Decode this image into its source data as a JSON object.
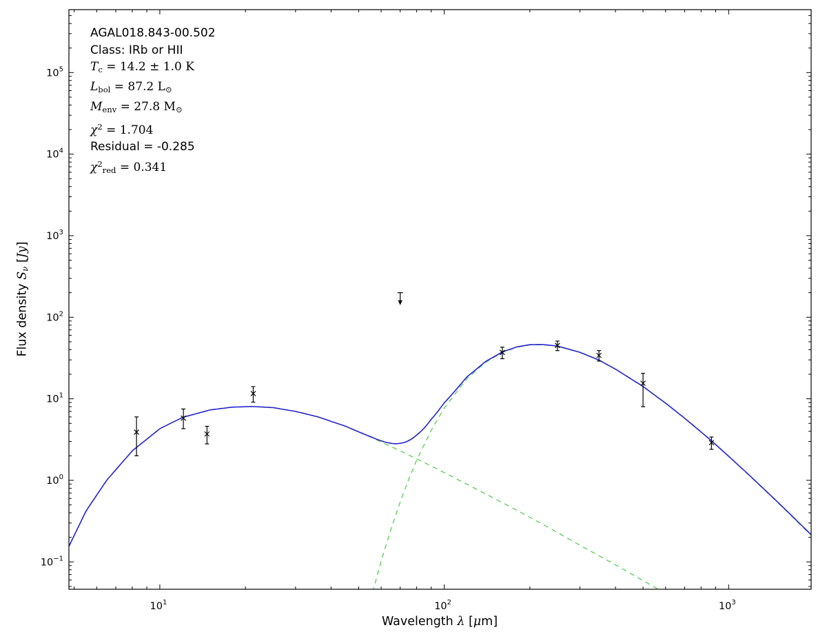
{
  "colors": {
    "model_total": "#2323cf",
    "model_components": "#55cc55",
    "data_points": "#000000",
    "frame": "#000000",
    "background": "#ffffff"
  },
  "annotation": {
    "lines": [
      {
        "segments": [
          {
            "t": "AGAL018.843-00.502",
            "s": "sans"
          }
        ]
      },
      {
        "segments": [
          {
            "t": "Class: IRb or HII",
            "s": "sans"
          }
        ]
      },
      {
        "segments": [
          {
            "t": "T",
            "s": "it"
          },
          {
            "t": "c",
            "s": "sub"
          },
          {
            "t": " = 14.2 ± 1.0 K",
            "s": "rm"
          }
        ]
      },
      {
        "segments": [
          {
            "t": "L",
            "s": "it"
          },
          {
            "t": "bol",
            "s": "sub"
          },
          {
            "t": " = 87.2 L",
            "s": "rm"
          },
          {
            "t": "⊙",
            "s": "sub"
          }
        ]
      },
      {
        "segments": [
          {
            "t": "M",
            "s": "it"
          },
          {
            "t": "env",
            "s": "sub"
          },
          {
            "t": " = 27.8 M",
            "s": "rm"
          },
          {
            "t": "⊙",
            "s": "sub"
          }
        ]
      },
      {
        "segments": [
          {
            "t": "χ",
            "s": "it"
          },
          {
            "t": "2",
            "s": "sup"
          },
          {
            "t": " = 1.704",
            "s": "rm"
          }
        ]
      },
      {
        "segments": [
          {
            "t": "Residual = -0.285",
            "s": "sans"
          }
        ]
      },
      {
        "segments": [
          {
            "t": "χ",
            "s": "it"
          },
          {
            "t": "2",
            "s": "sup"
          },
          {
            "t": "red",
            "s": "sub"
          },
          {
            "t": " = 0.341",
            "s": "rm"
          }
        ]
      }
    ]
  },
  "axes": {
    "xlabel_segments": [
      {
        "t": "Wavelength ",
        "s": "sans"
      },
      {
        "t": "λ",
        "s": "it"
      },
      {
        "t": " [",
        "s": "sans"
      },
      {
        "t": "μ",
        "s": "it"
      },
      {
        "t": "m]",
        "s": "sans"
      }
    ],
    "ylabel_segments": [
      {
        "t": "Flux density ",
        "s": "sans"
      },
      {
        "t": "S",
        "s": "it"
      },
      {
        "t": "ν",
        "s": "subit"
      },
      {
        "t": " [",
        "s": "sans"
      },
      {
        "t": "Jy",
        "s": "it"
      },
      {
        "t": "]",
        "s": "sans"
      }
    ]
  },
  "chart_data": {
    "type": "line",
    "title": "",
    "xlabel": "Wavelength λ [μm]",
    "ylabel": "Flux density Sν [Jy]",
    "x_scale": "log",
    "y_scale": "log",
    "xlim": [
      4.79,
      1950
    ],
    "ylim": [
      0.0462,
      591000
    ],
    "grid": false,
    "legend": "none",
    "x_ticks": [
      {
        "value": 10,
        "label_exp": "1"
      },
      {
        "value": 100,
        "label_exp": "2"
      },
      {
        "value": 1000,
        "label_exp": "3"
      }
    ],
    "y_ticks": [
      {
        "value": 0.1,
        "label_exp": "−1"
      },
      {
        "value": 1,
        "label_exp": "0"
      },
      {
        "value": 10,
        "label_exp": "1"
      },
      {
        "value": 100,
        "label_exp": "2"
      },
      {
        "value": 1000,
        "label_exp": "3"
      },
      {
        "value": 10000,
        "label_exp": "4"
      },
      {
        "value": 100000,
        "label_exp": "5"
      }
    ],
    "series": [
      {
        "name": "warm-component",
        "role": "component",
        "style": "dashed",
        "x": [
          4.79,
          5.5,
          6.5,
          8,
          10,
          12,
          15,
          18,
          21,
          25,
          30,
          36,
          45,
          55,
          70,
          90,
          110,
          140,
          180,
          230,
          300,
          400,
          500,
          600,
          700
        ],
        "y": [
          0.155,
          0.42,
          1.0,
          2.3,
          4.3,
          5.9,
          7.3,
          7.9,
          8.05,
          7.8,
          7.0,
          6.0,
          4.6,
          3.4,
          2.3,
          1.5,
          1.05,
          0.68,
          0.43,
          0.27,
          0.16,
          0.092,
          0.059,
          0.041,
          0.03
        ]
      },
      {
        "name": "cold-component",
        "role": "component",
        "style": "dashed",
        "x": [
          55,
          60,
          65,
          70,
          75,
          80,
          90,
          100,
          120,
          140,
          160,
          180,
          200,
          220,
          250,
          300,
          350,
          400,
          500,
          600,
          700,
          870,
          1000,
          1200,
          1500,
          1950
        ],
        "y": [
          0.034,
          0.102,
          0.254,
          0.546,
          1.03,
          1.77,
          4.1,
          7.7,
          17.6,
          28.1,
          37.0,
          42.9,
          45.7,
          46.1,
          44.1,
          37.0,
          29.7,
          23.0,
          14.1,
          8.8,
          5.76,
          3.04,
          1.96,
          1.09,
          0.52,
          0.212
        ]
      },
      {
        "name": "total-model",
        "role": "sum-of-components",
        "style": "solid"
      }
    ],
    "points": {
      "name": "photometry",
      "marker": "x",
      "x": [
        8.28,
        12.1,
        14.65,
        21.3,
        160,
        250,
        350,
        500,
        870
      ],
      "y": [
        3.9,
        5.8,
        3.7,
        11.6,
        37,
        45,
        34,
        15.5,
        2.9
      ],
      "err_minus": [
        1.9,
        1.5,
        0.9,
        2.5,
        6,
        6,
        5,
        7.5,
        0.5
      ],
      "err_plus": [
        2.1,
        1.7,
        0.9,
        2.5,
        6,
        6,
        5,
        5,
        0.5
      ]
    },
    "upper_limits": {
      "x": [
        70
      ],
      "y": [
        200
      ]
    },
    "annotations": [
      "AGAL018.843-00.502",
      "Class: IRb or HII",
      "Tc = 14.2 ± 1.0 K",
      "Lbol = 87.2 L⊙",
      "Menv = 27.8 M⊙",
      "χ2 = 1.704",
      "Residual = -0.285",
      "χ2red = 0.341"
    ]
  }
}
